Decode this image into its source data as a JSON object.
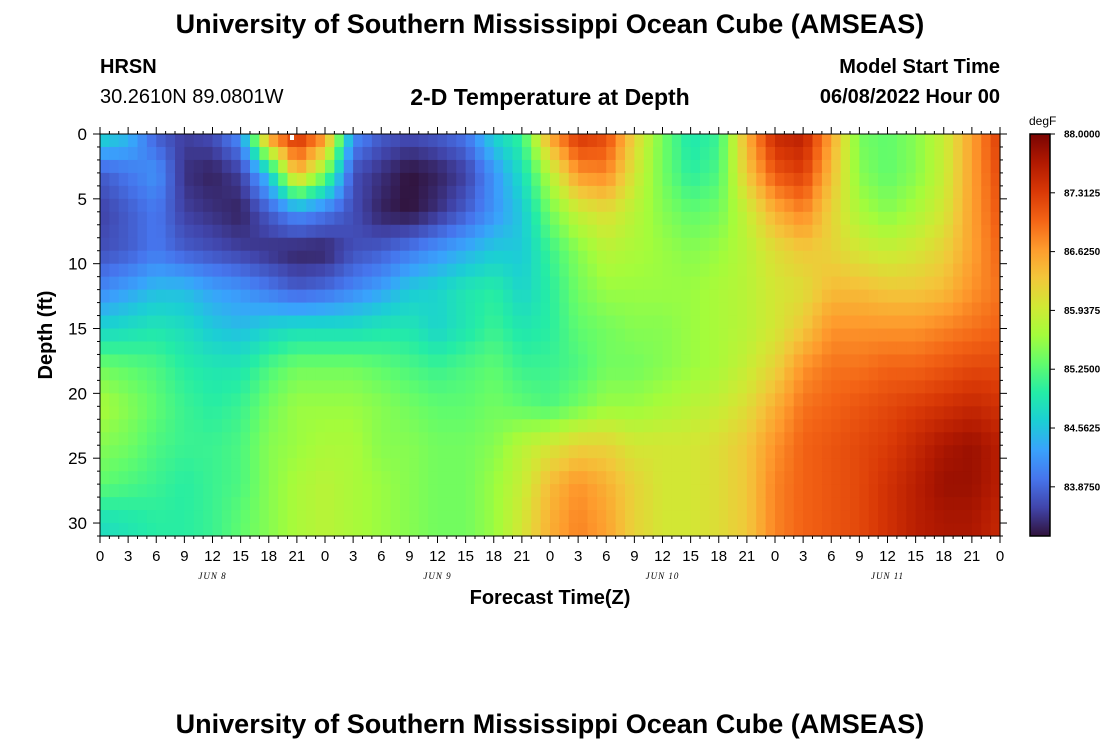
{
  "header": {
    "title": "University of Southern Mississippi Ocean Cube (AMSEAS)",
    "station": "HRSN",
    "coords": "30.2610N  89.0801W",
    "subtitle": "2-D Temperature at Depth",
    "start_label": "Model Start Time",
    "start_value": "06/08/2022 Hour 00"
  },
  "footer": {
    "title": "University of Southern Mississippi Ocean Cube (AMSEAS)"
  },
  "chart_data": {
    "type": "heatmap",
    "title": "2-D Temperature at Depth",
    "xlabel": "Forecast Time(Z)",
    "ylabel": "Depth (ft)",
    "x_hours_range": [
      0,
      96
    ],
    "x_tick_step_hours": 3,
    "x_tick_labels": [
      "0",
      "3",
      "6",
      "9",
      "12",
      "15",
      "18",
      "21",
      "0",
      "3",
      "6",
      "9",
      "12",
      "15",
      "18",
      "21",
      "0",
      "3",
      "6",
      "9",
      "12",
      "15",
      "18",
      "21",
      "0",
      "3",
      "6",
      "9",
      "12",
      "15",
      "18",
      "21",
      "0"
    ],
    "date_labels": [
      {
        "label": "JUN 8",
        "hour": 12
      },
      {
        "label": "JUN 9",
        "hour": 36
      },
      {
        "label": "JUN 10",
        "hour": 60
      },
      {
        "label": "JUN 11",
        "hour": 84
      }
    ],
    "y_range_ft": [
      0,
      31
    ],
    "y_ticks": [
      0,
      5,
      10,
      15,
      20,
      25,
      30
    ],
    "colorbar": {
      "unit": "degF",
      "min": 83.3,
      "max": 88.0,
      "tick_labels": [
        "88.0000",
        "87.3125",
        "86.6250",
        "85.9375",
        "85.2500",
        "84.5625",
        "83.8750"
      ],
      "colors": [
        "#30123b",
        "#4145ab",
        "#4675ed",
        "#39a2fc",
        "#1bcfd4",
        "#24eca6",
        "#61fc6c",
        "#a4fc3b",
        "#d1e834",
        "#f3c63a",
        "#fe9b2d",
        "#f36315",
        "#d93806",
        "#b11901",
        "#7a0402"
      ]
    },
    "grid_hours": [
      0,
      3,
      6,
      9,
      12,
      15,
      18,
      21,
      24,
      27,
      30,
      33,
      36,
      39,
      42,
      45,
      48,
      51,
      54,
      57,
      60,
      63,
      66,
      69,
      72,
      75,
      78,
      81,
      84,
      87,
      90,
      93,
      96
    ],
    "grid_depths_ft": [
      0,
      3,
      6,
      9,
      12,
      15,
      18,
      21,
      24,
      27,
      30
    ],
    "temperature_degF": [
      [
        84.8,
        83.8,
        83.6,
        83.7,
        84.1,
        84.7,
        85.4,
        85.7,
        85.5,
        85.3,
        84.8
      ],
      [
        84.5,
        84.0,
        83.8,
        83.8,
        84.3,
        84.8,
        85.3,
        85.5,
        85.4,
        85.2,
        84.9
      ],
      [
        83.8,
        84.2,
        84.0,
        84.0,
        84.5,
        84.9,
        85.2,
        85.3,
        85.2,
        85.1,
        85.0
      ],
      [
        83.6,
        83.5,
        83.6,
        83.8,
        84.5,
        84.8,
        85.0,
        85.1,
        85.1,
        85.0,
        85.0
      ],
      [
        83.7,
        83.4,
        83.5,
        83.7,
        84.3,
        84.6,
        84.9,
        85.0,
        85.1,
        85.1,
        85.1
      ],
      [
        84.2,
        83.6,
        83.4,
        83.6,
        84.2,
        84.5,
        84.9,
        85.1,
        85.2,
        85.2,
        85.3
      ],
      [
        86.8,
        84.6,
        83.8,
        83.5,
        84.0,
        84.7,
        85.2,
        85.4,
        85.5,
        85.5,
        85.5
      ],
      [
        87.5,
        86.5,
        84.2,
        83.4,
        83.8,
        84.8,
        85.4,
        85.6,
        85.6,
        85.7,
        85.7
      ],
      [
        86.8,
        85.5,
        84.0,
        83.4,
        83.9,
        84.8,
        85.4,
        85.6,
        85.7,
        85.8,
        85.8
      ],
      [
        84.2,
        83.7,
        83.7,
        83.7,
        84.1,
        84.8,
        85.4,
        85.6,
        85.7,
        85.7,
        85.7
      ],
      [
        83.8,
        83.5,
        83.4,
        83.8,
        84.3,
        84.9,
        85.3,
        85.5,
        85.5,
        85.6,
        85.6
      ],
      [
        83.7,
        83.3,
        83.3,
        84.0,
        84.6,
        84.9,
        85.2,
        85.4,
        85.5,
        85.5,
        85.5
      ],
      [
        83.8,
        83.4,
        83.5,
        84.2,
        84.7,
        84.7,
        85.1,
        85.3,
        85.4,
        85.4,
        85.4
      ],
      [
        84.0,
        83.6,
        83.8,
        84.4,
        84.9,
        84.9,
        85.2,
        85.3,
        85.4,
        85.4,
        85.4
      ],
      [
        84.7,
        84.2,
        84.2,
        84.6,
        85.0,
        85.1,
        85.3,
        85.4,
        85.5,
        85.6,
        85.6
      ],
      [
        85.1,
        84.8,
        84.6,
        84.6,
        84.7,
        84.9,
        85.1,
        85.3,
        85.8,
        85.9,
        86.0
      ],
      [
        86.6,
        85.8,
        85.4,
        85.1,
        85.0,
        85.0,
        85.1,
        85.2,
        86.0,
        86.4,
        86.5
      ],
      [
        87.4,
        86.7,
        85.9,
        85.5,
        85.4,
        85.3,
        85.2,
        85.4,
        86.2,
        86.7,
        86.8
      ],
      [
        87.2,
        86.8,
        86.1,
        85.8,
        85.6,
        85.4,
        85.4,
        85.6,
        86.2,
        86.5,
        86.6
      ],
      [
        86.2,
        86.0,
        85.8,
        85.7,
        85.6,
        85.5,
        85.4,
        85.6,
        86.0,
        86.2,
        86.2
      ],
      [
        85.4,
        85.4,
        85.5,
        85.6,
        85.6,
        85.5,
        85.5,
        85.7,
        86.0,
        86.0,
        86.0
      ],
      [
        84.9,
        85.0,
        85.3,
        85.5,
        85.6,
        85.6,
        85.6,
        85.8,
        86.0,
        86.0,
        86.0
      ],
      [
        85.1,
        85.2,
        85.4,
        85.6,
        85.7,
        85.7,
        85.7,
        85.9,
        86.1,
        86.1,
        86.1
      ],
      [
        86.5,
        86.3,
        85.9,
        85.8,
        85.8,
        85.8,
        85.9,
        86.1,
        86.3,
        86.3,
        86.3
      ],
      [
        87.5,
        87.1,
        86.5,
        86.1,
        86.0,
        86.0,
        86.2,
        86.5,
        86.7,
        86.8,
        86.8
      ],
      [
        87.6,
        87.3,
        86.8,
        86.3,
        86.1,
        86.3,
        86.7,
        86.9,
        87.0,
        87.0,
        87.0
      ],
      [
        86.6,
        86.4,
        86.2,
        86.2,
        86.4,
        86.7,
        86.9,
        87.0,
        87.1,
        87.1,
        87.1
      ],
      [
        85.4,
        85.5,
        85.7,
        86.0,
        86.4,
        86.7,
        86.9,
        87.1,
        87.2,
        87.2,
        87.2
      ],
      [
        85.3,
        85.3,
        85.5,
        85.9,
        86.3,
        86.7,
        87.0,
        87.2,
        87.3,
        87.4,
        87.4
      ],
      [
        85.5,
        85.5,
        85.7,
        86.0,
        86.3,
        86.7,
        87.0,
        87.3,
        87.5,
        87.6,
        87.6
      ],
      [
        85.9,
        85.9,
        86.0,
        86.2,
        86.4,
        86.8,
        87.1,
        87.4,
        87.7,
        87.8,
        87.7
      ],
      [
        86.6,
        86.6,
        86.6,
        86.6,
        86.7,
        86.9,
        87.2,
        87.5,
        87.8,
        87.8,
        87.7
      ],
      [
        87.3,
        87.2,
        87.1,
        87.0,
        86.9,
        87.0,
        87.2,
        87.4,
        87.6,
        87.6,
        87.5
      ]
    ]
  }
}
